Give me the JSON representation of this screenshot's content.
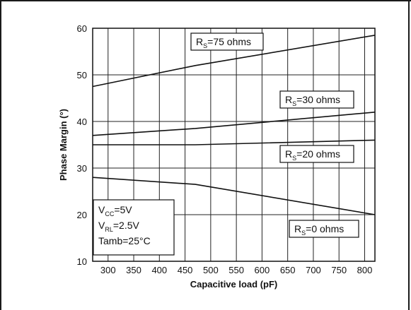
{
  "chart_data": {
    "type": "line",
    "xlabel": "Capacitive load (pF)",
    "ylabel": "Phase Margin (°)",
    "xlim": [
      270,
      820
    ],
    "ylim": [
      10,
      60
    ],
    "x_ticks": [
      "300",
      "350",
      "400",
      "450",
      "500",
      "550",
      "600",
      "650",
      "700",
      "750",
      "800"
    ],
    "y_ticks": [
      "10",
      "20",
      "30",
      "40",
      "50",
      "60"
    ],
    "grid": true,
    "series": [
      {
        "name": "RS=75 ohms",
        "label_main": "R",
        "label_sub": "S",
        "label_rest": "=75 ohms",
        "x": [
          270,
          470,
          820
        ],
        "y": [
          47.5,
          52,
          58.5
        ]
      },
      {
        "name": "RS=30 ohms",
        "label_main": "R",
        "label_sub": "S",
        "label_rest": "=30 ohms",
        "x": [
          270,
          470,
          820
        ],
        "y": [
          37,
          38.5,
          42
        ]
      },
      {
        "name": "RS=20 ohms",
        "label_main": "R",
        "label_sub": "S",
        "label_rest": "=20 ohms",
        "x": [
          270,
          470,
          820
        ],
        "y": [
          35,
          35,
          36
        ]
      },
      {
        "name": "RS=0 ohms",
        "label_main": "R",
        "label_sub": "S",
        "label_rest": "=0 ohms",
        "x": [
          270,
          470,
          820
        ],
        "y": [
          28,
          26.5,
          20
        ]
      }
    ],
    "conditions": [
      {
        "main": "V",
        "sub": "CC",
        "rest": "=5V"
      },
      {
        "main": "V",
        "sub": "RL",
        "rest": "=2.5V"
      },
      {
        "main": "Tamb=25°C",
        "sub": "",
        "rest": ""
      }
    ]
  }
}
